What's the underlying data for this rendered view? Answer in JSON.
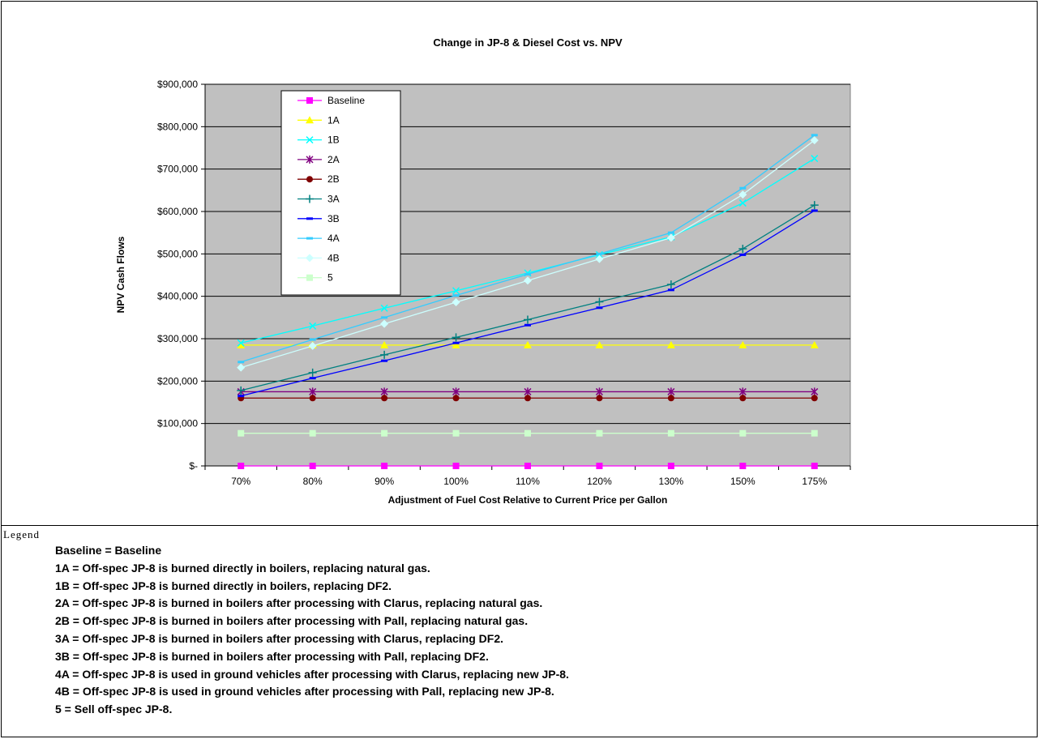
{
  "chart_data": {
    "type": "line",
    "title": "Change in JP-8 & Diesel Cost vs. NPV",
    "xlabel": "Adjustment of Fuel Cost Relative to Current Price per Gallon",
    "ylabel": "NPV Cash Flows",
    "categories": [
      "70%",
      "80%",
      "90%",
      "100%",
      "110%",
      "120%",
      "130%",
      "150%",
      "175%"
    ],
    "ylim": [
      0,
      900000
    ],
    "yticks": [
      0,
      100000,
      200000,
      300000,
      400000,
      500000,
      600000,
      700000,
      800000,
      900000
    ],
    "ytick_labels": [
      "$-",
      "$100,000",
      "$200,000",
      "$300,000",
      "$400,000",
      "$500,000",
      "$600,000",
      "$700,000",
      "$800,000",
      "$900,000"
    ],
    "grid": "horizontal",
    "plot_background": "#c0c0c0",
    "legend_position": "upper-left-inside",
    "series": [
      {
        "name": "Baseline",
        "color": "#ff00ff",
        "marker": "square",
        "values": [
          0,
          0,
          0,
          0,
          0,
          0,
          0,
          0,
          0
        ]
      },
      {
        "name": "1A",
        "color": "#ffff00",
        "marker": "triangle",
        "values": [
          285000,
          285000,
          285000,
          285000,
          285000,
          285000,
          285000,
          285000,
          285000
        ]
      },
      {
        "name": "1B",
        "color": "#00ffff",
        "marker": "x",
        "values": [
          290000,
          330000,
          372000,
          413000,
          455000,
          498000,
          540000,
          620000,
          725000
        ]
      },
      {
        "name": "2A",
        "color": "#800080",
        "marker": "star",
        "values": [
          175000,
          175000,
          175000,
          175000,
          175000,
          175000,
          175000,
          175000,
          175000
        ]
      },
      {
        "name": "2B",
        "color": "#800000",
        "marker": "circle",
        "values": [
          160000,
          160000,
          160000,
          160000,
          160000,
          160000,
          160000,
          160000,
          160000
        ]
      },
      {
        "name": "3A",
        "color": "#008080",
        "marker": "plus",
        "values": [
          178000,
          220000,
          262000,
          303000,
          345000,
          387000,
          428000,
          512000,
          615000
        ]
      },
      {
        "name": "3B",
        "color": "#0000ff",
        "marker": "dash",
        "values": [
          165000,
          207000,
          248000,
          290000,
          332000,
          373000,
          415000,
          498000,
          602000
        ]
      },
      {
        "name": "4A",
        "color": "#33ccff",
        "marker": "dash",
        "values": [
          245000,
          298000,
          350000,
          402000,
          452000,
          500000,
          550000,
          655000,
          780000
        ]
      },
      {
        "name": "4B",
        "color": "#ccffff",
        "marker": "diamond",
        "values": [
          232000,
          283000,
          335000,
          386000,
          437000,
          488000,
          538000,
          640000,
          768000
        ]
      },
      {
        "name": "5",
        "color": "#ccffcc",
        "marker": "square",
        "values": [
          77000,
          77000,
          77000,
          77000,
          77000,
          77000,
          77000,
          77000,
          77000
        ]
      }
    ]
  },
  "legend_section": {
    "heading": "Legend",
    "lines": [
      "Baseline = Baseline",
      "1A = Off-spec JP-8 is burned directly in boilers, replacing natural gas.",
      "1B = Off-spec JP-8 is burned directly in boilers, replacing DF2.",
      "2A = Off-spec JP-8 is burned in boilers after processing with Clarus, replacing natural gas.",
      "2B = Off-spec JP-8 is burned in boilers after processing with Pall, replacing natural gas.",
      "3A = Off-spec JP-8 is burned in boilers after processing with Clarus, replacing DF2.",
      "3B = Off-spec JP-8 is burned in boilers after processing with Pall, replacing DF2.",
      "4A = Off-spec JP-8 is used in ground vehicles after processing with Clarus, replacing new JP-8.",
      "4B = Off-spec JP-8 is used in ground vehicles after processing with Pall, replacing new JP-8.",
      "5 = Sell off-spec JP-8."
    ]
  }
}
